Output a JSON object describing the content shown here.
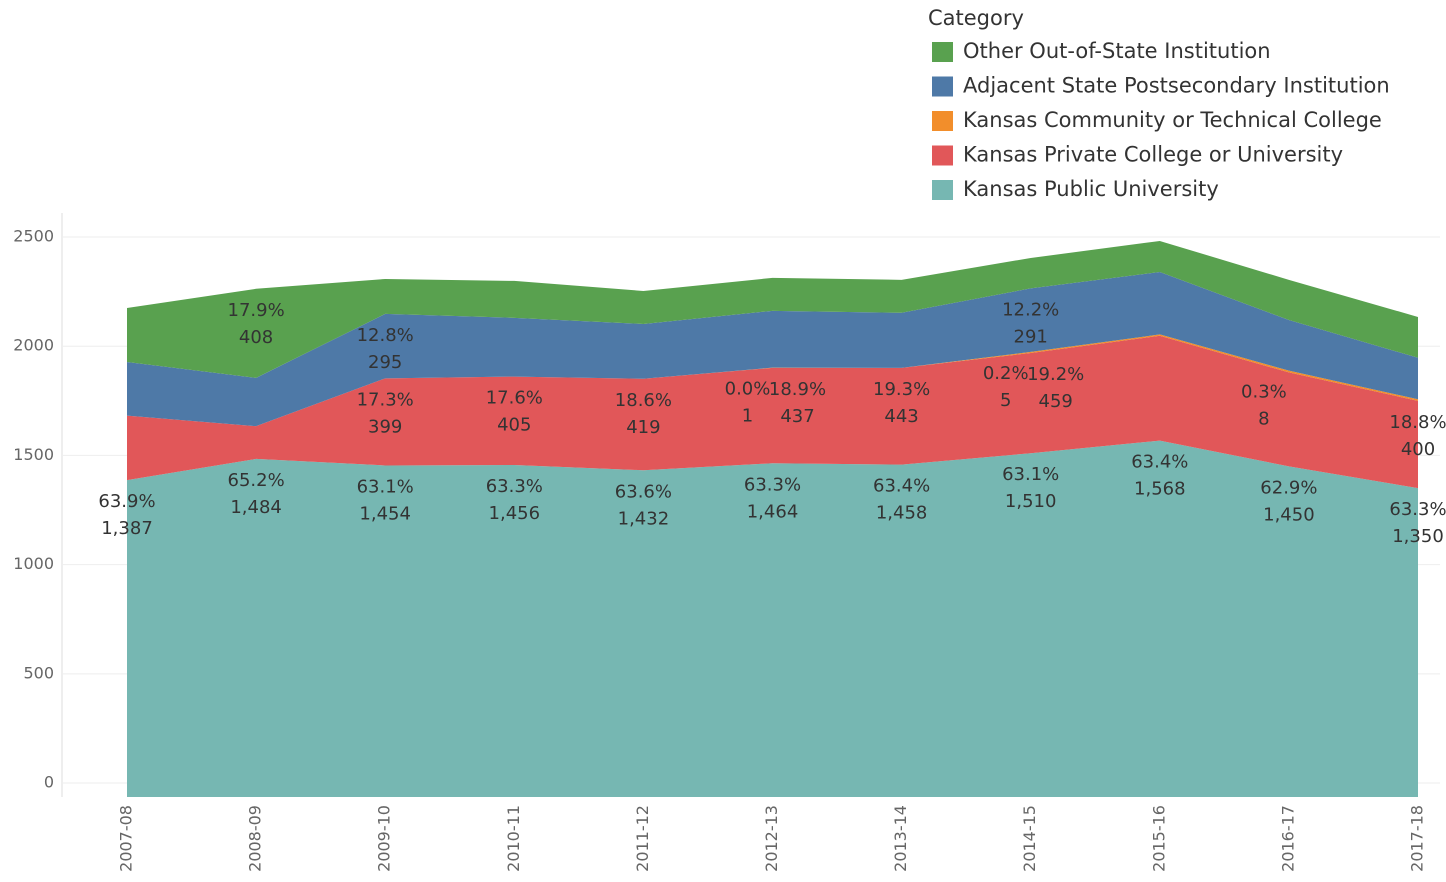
{
  "chart_data": {
    "type": "area",
    "legend_title": "Category",
    "categories": [
      "2007-08",
      "2008-09",
      "2009-10",
      "2010-11",
      "2011-12",
      "2012-13",
      "2013-14",
      "2014-15",
      "2015-16",
      "2016-17",
      "2017-18"
    ],
    "series": [
      {
        "name": "Kansas Public University",
        "color": "#76b7b2",
        "values": [
          1387,
          1484,
          1454,
          1456,
          1432,
          1464,
          1458,
          1510,
          1568,
          1450,
          1350
        ],
        "value_labels": [
          "1,387",
          "1,484",
          "1,454",
          "1,456",
          "1,432",
          "1,464",
          "1,458",
          "1,510",
          "1,568",
          "1,450",
          "1,350"
        ],
        "pct_labels": [
          "63.9%",
          "65.2%",
          "63.1%",
          "63.3%",
          "63.6%",
          "63.3%",
          "63.4%",
          "63.1%",
          "63.4%",
          "62.9%",
          "63.3%"
        ]
      },
      {
        "name": "Kansas Private College or University",
        "color": "#e15759",
        "values": [
          295,
          150,
          399,
          405,
          419,
          437,
          443,
          459,
          480,
          430,
          400
        ],
        "value_labels": [
          null,
          null,
          "399",
          "405",
          "419",
          "437",
          "443",
          "459",
          null,
          null,
          "400"
        ],
        "pct_labels": [
          null,
          null,
          "17.3%",
          "17.6%",
          "18.6%",
          "18.9%",
          "19.3%",
          "19.2%",
          null,
          null,
          "18.8%"
        ]
      },
      {
        "name": "Kansas Community or Technical College",
        "color": "#f28e2b",
        "values": [
          0,
          0,
          0,
          0,
          0,
          1,
          0,
          5,
          6,
          8,
          7
        ],
        "value_labels": [
          null,
          null,
          null,
          null,
          null,
          "1",
          null,
          "5",
          null,
          "8",
          null
        ],
        "pct_labels": [
          null,
          null,
          null,
          null,
          null,
          "0.0%",
          null,
          "0.2%",
          null,
          "0.3%",
          null
        ]
      },
      {
        "name": "Adjacent State Postsecondary Institution",
        "color": "#4e79a7",
        "values": [
          246,
          221,
          295,
          269,
          251,
          260,
          252,
          291,
          286,
          232,
          190
        ],
        "value_labels": [
          null,
          null,
          "295",
          null,
          null,
          null,
          null,
          "291",
          null,
          null,
          null
        ],
        "pct_labels": [
          null,
          null,
          "12.8%",
          null,
          null,
          null,
          null,
          "12.2%",
          null,
          null,
          null
        ]
      },
      {
        "name": "Other Out-of-State Institution",
        "color": "#59a14f",
        "values": [
          247,
          408,
          160,
          169,
          151,
          151,
          151,
          139,
          142,
          184,
          187
        ],
        "value_labels": [
          null,
          "408",
          null,
          null,
          null,
          null,
          null,
          null,
          null,
          null,
          null
        ],
        "pct_labels": [
          null,
          "17.9%",
          null,
          null,
          null,
          null,
          null,
          null,
          null,
          null,
          null
        ]
      }
    ],
    "ylim": [
      -64,
      2610
    ],
    "yticks": [
      0,
      500,
      1000,
      1500,
      2000,
      2500
    ],
    "grid": true
  }
}
